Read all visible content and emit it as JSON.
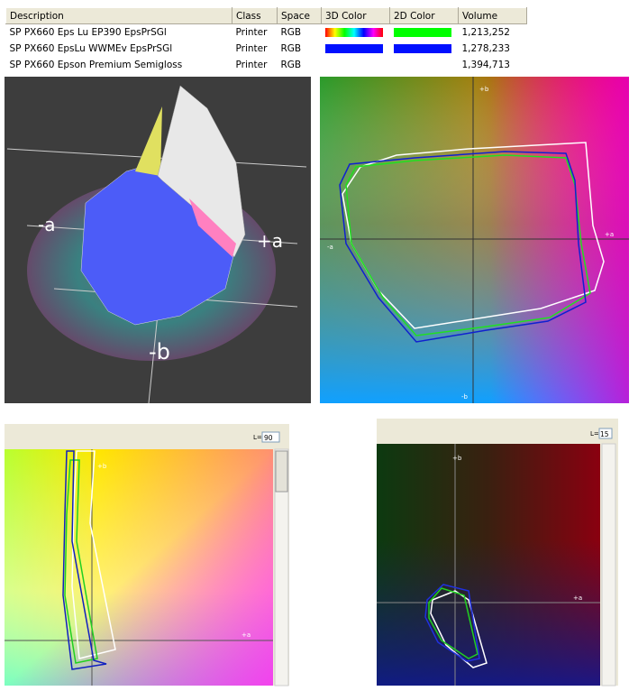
{
  "table": {
    "columns": [
      "Description",
      "Class",
      "Space",
      "3D Color",
      "2D Color",
      "Volume"
    ],
    "rows": [
      {
        "description": "SP PX660 Eps Lu EP390 EpsPrSGl",
        "class": "Printer",
        "space": "RGB",
        "volume": "1,213,252"
      },
      {
        "description": "SP PX660 EpsLu WWMEv EpsPrSGl",
        "class": "Printer",
        "space": "RGB",
        "volume": "1,278,233"
      },
      {
        "description": "SP PX660 Epson Premium Semigloss",
        "class": "Printer",
        "space": "RGB",
        "volume": "1,394,713"
      }
    ]
  },
  "view3d": {
    "minus_a": "-a",
    "plus_a": "+a",
    "minus_b": "-b"
  },
  "view2d": {
    "plus_b": "+b",
    "minus_a": "-a",
    "plus_a": "+a",
    "minus_b": "-b"
  },
  "slice_high": {
    "l_label": "L=",
    "l_value": "90",
    "plus_b": "+b",
    "plus_a": "+a"
  },
  "slice_low": {
    "l_label": "L=",
    "l_value": "15",
    "plus_b": "+b",
    "plus_a": "+a"
  }
}
